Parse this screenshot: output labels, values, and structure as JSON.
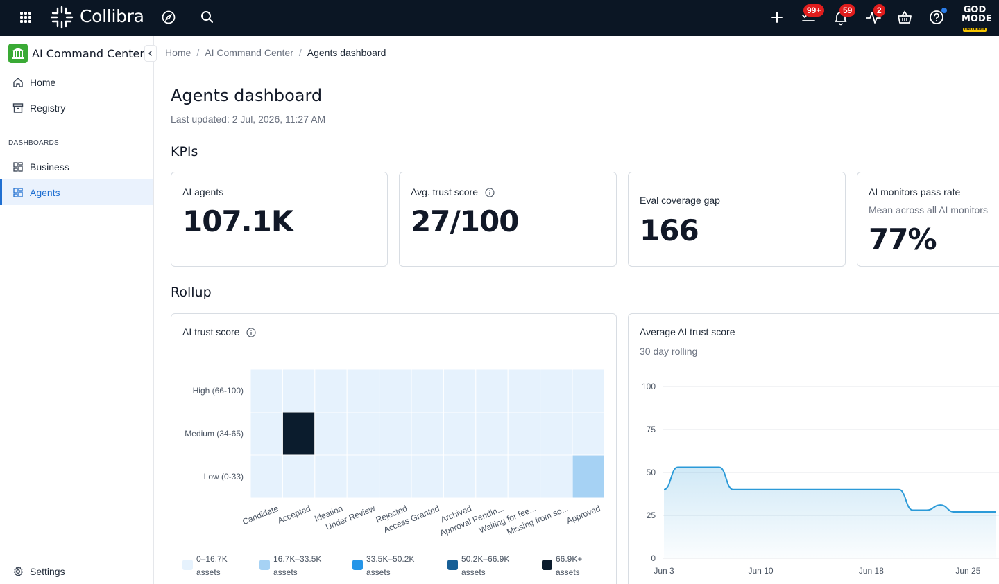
{
  "topbar": {
    "brand": "Collibra",
    "badges": {
      "tasks": "99+",
      "notifications": "59",
      "activity": "2"
    },
    "godmode": {
      "line1": "GOD",
      "line2": "MODE",
      "line3": "UNLOCKED"
    }
  },
  "sidebar": {
    "title": "AI Command Center",
    "items": [
      {
        "label": "Home"
      },
      {
        "label": "Registry"
      }
    ],
    "section_label": "DASHBOARDS",
    "dashboards": [
      {
        "label": "Business"
      },
      {
        "label": "Agents"
      }
    ],
    "settings_label": "Settings"
  },
  "breadcrumb": [
    "Home",
    "AI Command Center",
    "Agents dashboard"
  ],
  "page": {
    "title": "Agents dashboard",
    "last_updated": "Last updated: 2 Jul, 2026, 11:27 AM",
    "kpis_heading": "KPIs",
    "rollup_heading": "Rollup"
  },
  "kpis": [
    {
      "label": "AI agents",
      "value": "107.1K"
    },
    {
      "label": "Avg. trust score",
      "value": "27/100"
    },
    {
      "label": "Eval coverage gap",
      "value": "166"
    },
    {
      "label": "AI monitors pass rate",
      "subtitle": "Mean across all AI monitors",
      "value": "77%"
    }
  ],
  "colors": {
    "accent": "#1f6fd1",
    "topbar": "#0b1624",
    "badge": "#e11d1d",
    "line": "#2b9ad8",
    "legend": [
      "#e6f2fd",
      "#a6d2f4",
      "#2595e8",
      "#175f96",
      "#0b1c2d"
    ]
  },
  "chart_data": [
    {
      "type": "heatmap",
      "title": "AI trust score",
      "x_categories": [
        "Candidate",
        "Accepted",
        "Ideation",
        "Under Review",
        "Rejected",
        "Access Granted",
        "Archived",
        "Approval Pendin...",
        "Waiting for fee...",
        "Missing from so...",
        "Approved"
      ],
      "y_categories": [
        "High (66-100)",
        "Medium (34-65)",
        "Low (0-33)"
      ],
      "values": [
        [
          0,
          0,
          0,
          0,
          0,
          0,
          0,
          0,
          0,
          0,
          0
        ],
        [
          0,
          4,
          0,
          0,
          0,
          0,
          0,
          0,
          0,
          0,
          0
        ],
        [
          0,
          0,
          0,
          0,
          0,
          0,
          0,
          0,
          0,
          0,
          1
        ]
      ],
      "value_note": "bucket index 0-4 matching legend",
      "legend": [
        {
          "range": "0–16.7K",
          "unit": "assets"
        },
        {
          "range": "16.7K–33.5K",
          "unit": "assets"
        },
        {
          "range": "33.5K–50.2K",
          "unit": "assets"
        },
        {
          "range": "50.2K–66.9K",
          "unit": "assets"
        },
        {
          "range": "66.9K+",
          "unit": "assets"
        }
      ]
    },
    {
      "type": "area",
      "title": "Average AI trust score",
      "subtitle": "30 day rolling",
      "ylim": [
        0,
        100
      ],
      "y_ticks": [
        "100",
        "75",
        "50",
        "25",
        "0"
      ],
      "x_ticks": [
        "Jun 3",
        "Jun 10",
        "Jun 18",
        "Jun 25"
      ],
      "x": [
        "Jun 3",
        "Jun 4",
        "Jun 5",
        "Jun 6",
        "Jun 7",
        "Jun 8",
        "Jun 9",
        "Jun 10",
        "Jun 11",
        "Jun 12",
        "Jun 13",
        "Jun 14",
        "Jun 15",
        "Jun 16",
        "Jun 17",
        "Jun 18",
        "Jun 19",
        "Jun 20",
        "Jun 21",
        "Jun 22",
        "Jun 23",
        "Jun 24",
        "Jun 25",
        "Jun 26",
        "Jun 27"
      ],
      "values": [
        40,
        53,
        53,
        53,
        53,
        40,
        40,
        40,
        40,
        40,
        40,
        40,
        40,
        40,
        40,
        40,
        40,
        40,
        28,
        28,
        31,
        27,
        27,
        27,
        27
      ]
    }
  ]
}
